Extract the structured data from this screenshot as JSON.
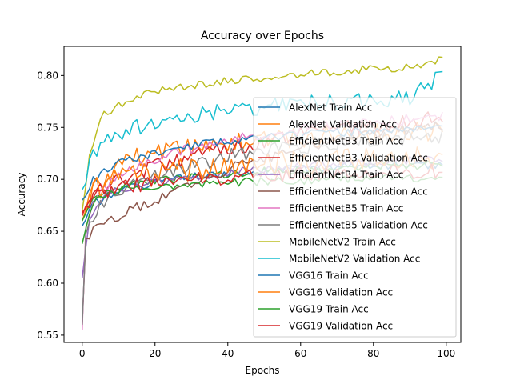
{
  "chart_data": {
    "type": "line",
    "title": "Accuracy over Epochs",
    "xlabel": "Epochs",
    "ylabel": "Accuracy",
    "xlim": [
      -5,
      104
    ],
    "ylim": [
      0.543,
      0.828
    ],
    "xticks": [
      0,
      20,
      40,
      60,
      80,
      100
    ],
    "yticks": [
      0.55,
      0.6,
      0.65,
      0.7,
      0.75,
      0.8
    ],
    "grid": false,
    "legend_position": "right",
    "series": [
      {
        "name": "AlexNet Train Acc",
        "color": "#1f77b4",
        "anchors": [
          [
            0,
            0.655
          ],
          [
            3,
            0.675
          ],
          [
            10,
            0.69
          ],
          [
            20,
            0.697
          ],
          [
            30,
            0.702
          ],
          [
            40,
            0.705
          ],
          [
            50,
            0.708
          ],
          [
            60,
            0.71
          ],
          [
            70,
            0.712
          ],
          [
            80,
            0.713
          ],
          [
            90,
            0.713
          ],
          [
            99,
            0.714
          ]
        ],
        "noise": 0.004,
        "seed": 1
      },
      {
        "name": "AlexNet Validation Acc",
        "color": "#ff7f0e",
        "anchors": [
          [
            0,
            0.66
          ],
          [
            3,
            0.69
          ],
          [
            10,
            0.715
          ],
          [
            20,
            0.725
          ],
          [
            30,
            0.73
          ],
          [
            40,
            0.735
          ],
          [
            50,
            0.738
          ],
          [
            60,
            0.74
          ],
          [
            70,
            0.742
          ],
          [
            80,
            0.744
          ],
          [
            90,
            0.745
          ],
          [
            99,
            0.748
          ]
        ],
        "noise": 0.01,
        "seed": 2
      },
      {
        "name": "EfficientNetB3 Train Acc",
        "color": "#2ca02c",
        "anchors": [
          [
            0,
            0.66
          ],
          [
            3,
            0.68
          ],
          [
            10,
            0.692
          ],
          [
            20,
            0.698
          ],
          [
            30,
            0.702
          ],
          [
            40,
            0.705
          ],
          [
            50,
            0.708
          ],
          [
            60,
            0.709
          ],
          [
            70,
            0.71
          ],
          [
            80,
            0.712
          ],
          [
            90,
            0.713
          ],
          [
            99,
            0.714
          ]
        ],
        "noise": 0.004,
        "seed": 3
      },
      {
        "name": "EfficientNetB3 Validation Acc",
        "color": "#d62728",
        "anchors": [
          [
            0,
            0.665
          ],
          [
            3,
            0.685
          ],
          [
            10,
            0.7
          ],
          [
            20,
            0.712
          ],
          [
            30,
            0.722
          ],
          [
            40,
            0.73
          ],
          [
            50,
            0.738
          ],
          [
            60,
            0.744
          ],
          [
            70,
            0.75
          ],
          [
            80,
            0.753
          ],
          [
            90,
            0.756
          ],
          [
            99,
            0.76
          ]
        ],
        "noise": 0.008,
        "seed": 4
      },
      {
        "name": "EfficientNetB4 Train Acc",
        "color": "#9467bd",
        "anchors": [
          [
            0,
            0.605
          ],
          [
            2,
            0.66
          ],
          [
            5,
            0.68
          ],
          [
            10,
            0.69
          ],
          [
            20,
            0.697
          ],
          [
            30,
            0.702
          ],
          [
            40,
            0.706
          ],
          [
            50,
            0.71
          ],
          [
            60,
            0.712
          ],
          [
            70,
            0.714
          ],
          [
            80,
            0.716
          ],
          [
            90,
            0.718
          ],
          [
            99,
            0.72
          ]
        ],
        "noise": 0.004,
        "seed": 5
      },
      {
        "name": "EfficientNetB4 Validation Acc",
        "color": "#8c564b",
        "anchors": [
          [
            0,
            0.56
          ],
          [
            1,
            0.64
          ],
          [
            3,
            0.655
          ],
          [
            10,
            0.665
          ],
          [
            20,
            0.68
          ],
          [
            30,
            0.695
          ],
          [
            40,
            0.71
          ],
          [
            50,
            0.72
          ],
          [
            60,
            0.73
          ],
          [
            70,
            0.738
          ],
          [
            80,
            0.744
          ],
          [
            90,
            0.748
          ],
          [
            99,
            0.752
          ]
        ],
        "noise": 0.005,
        "seed": 6
      },
      {
        "name": "EfficientNetB5 Train Acc",
        "color": "#e377c2",
        "anchors": [
          [
            0,
            0.555
          ],
          [
            1,
            0.65
          ],
          [
            3,
            0.68
          ],
          [
            10,
            0.705
          ],
          [
            20,
            0.72
          ],
          [
            30,
            0.73
          ],
          [
            40,
            0.738
          ],
          [
            50,
            0.744
          ],
          [
            60,
            0.748
          ],
          [
            70,
            0.752
          ],
          [
            80,
            0.755
          ],
          [
            90,
            0.758
          ],
          [
            99,
            0.76
          ]
        ],
        "noise": 0.005,
        "seed": 7
      },
      {
        "name": "EfficientNetB5 Validation Acc",
        "color": "#7f7f7f",
        "anchors": [
          [
            0,
            0.56
          ],
          [
            1,
            0.64
          ],
          [
            3,
            0.665
          ],
          [
            10,
            0.69
          ],
          [
            20,
            0.705
          ],
          [
            30,
            0.715
          ],
          [
            40,
            0.722
          ],
          [
            50,
            0.728
          ],
          [
            60,
            0.732
          ],
          [
            70,
            0.735
          ],
          [
            80,
            0.738
          ],
          [
            90,
            0.74
          ],
          [
            99,
            0.742
          ]
        ],
        "noise": 0.008,
        "seed": 8
      },
      {
        "name": "MobileNetV2 Train Acc",
        "color": "#bcbd22",
        "anchors": [
          [
            0,
            0.67
          ],
          [
            2,
            0.725
          ],
          [
            5,
            0.76
          ],
          [
            10,
            0.772
          ],
          [
            20,
            0.785
          ],
          [
            30,
            0.79
          ],
          [
            40,
            0.795
          ],
          [
            50,
            0.798
          ],
          [
            60,
            0.801
          ],
          [
            70,
            0.804
          ],
          [
            80,
            0.806
          ],
          [
            90,
            0.808
          ],
          [
            99,
            0.815
          ]
        ],
        "noise": 0.004,
        "seed": 9
      },
      {
        "name": "MobileNetV2 Validation Acc",
        "color": "#17becf",
        "anchors": [
          [
            0,
            0.69
          ],
          [
            2,
            0.715
          ],
          [
            5,
            0.735
          ],
          [
            10,
            0.745
          ],
          [
            20,
            0.755
          ],
          [
            30,
            0.762
          ],
          [
            40,
            0.767
          ],
          [
            50,
            0.77
          ],
          [
            60,
            0.773
          ],
          [
            70,
            0.775
          ],
          [
            80,
            0.777
          ],
          [
            90,
            0.779
          ],
          [
            99,
            0.8
          ]
        ],
        "noise": 0.008,
        "seed": 10
      },
      {
        "name": "VGG16 Train Acc",
        "color": "#1f77b4",
        "anchors": [
          [
            0,
            0.68
          ],
          [
            3,
            0.7
          ],
          [
            10,
            0.715
          ],
          [
            20,
            0.725
          ],
          [
            30,
            0.732
          ],
          [
            40,
            0.737
          ],
          [
            50,
            0.74
          ],
          [
            60,
            0.743
          ],
          [
            70,
            0.745
          ],
          [
            80,
            0.747
          ],
          [
            90,
            0.748
          ],
          [
            99,
            0.75
          ]
        ],
        "noise": 0.004,
        "seed": 11
      },
      {
        "name": "VGG16 Validation Acc",
        "color": "#ff7f0e",
        "anchors": [
          [
            0,
            0.67
          ],
          [
            3,
            0.69
          ],
          [
            10,
            0.7
          ],
          [
            20,
            0.705
          ],
          [
            30,
            0.71
          ],
          [
            40,
            0.712
          ],
          [
            50,
            0.714
          ],
          [
            60,
            0.716
          ],
          [
            70,
            0.718
          ],
          [
            80,
            0.719
          ],
          [
            90,
            0.72
          ],
          [
            99,
            0.722
          ]
        ],
        "noise": 0.012,
        "seed": 12
      },
      {
        "name": "VGG19 Train Acc",
        "color": "#2ca02c",
        "anchors": [
          [
            0,
            0.638
          ],
          [
            2,
            0.67
          ],
          [
            5,
            0.685
          ],
          [
            10,
            0.69
          ],
          [
            20,
            0.693
          ],
          [
            30,
            0.695
          ],
          [
            40,
            0.697
          ],
          [
            50,
            0.698
          ],
          [
            60,
            0.699
          ],
          [
            70,
            0.7
          ],
          [
            80,
            0.701
          ],
          [
            90,
            0.701
          ],
          [
            99,
            0.702
          ]
        ],
        "noise": 0.004,
        "seed": 13
      },
      {
        "name": "VGG19 Validation Acc",
        "color": "#d62728",
        "anchors": [
          [
            0,
            0.668
          ],
          [
            2,
            0.68
          ],
          [
            5,
            0.688
          ],
          [
            10,
            0.692
          ],
          [
            20,
            0.697
          ],
          [
            30,
            0.7
          ],
          [
            40,
            0.702
          ],
          [
            50,
            0.704
          ],
          [
            60,
            0.705
          ],
          [
            70,
            0.706
          ],
          [
            80,
            0.707
          ],
          [
            90,
            0.707
          ],
          [
            99,
            0.708
          ]
        ],
        "noise": 0.007,
        "seed": 14
      }
    ]
  }
}
